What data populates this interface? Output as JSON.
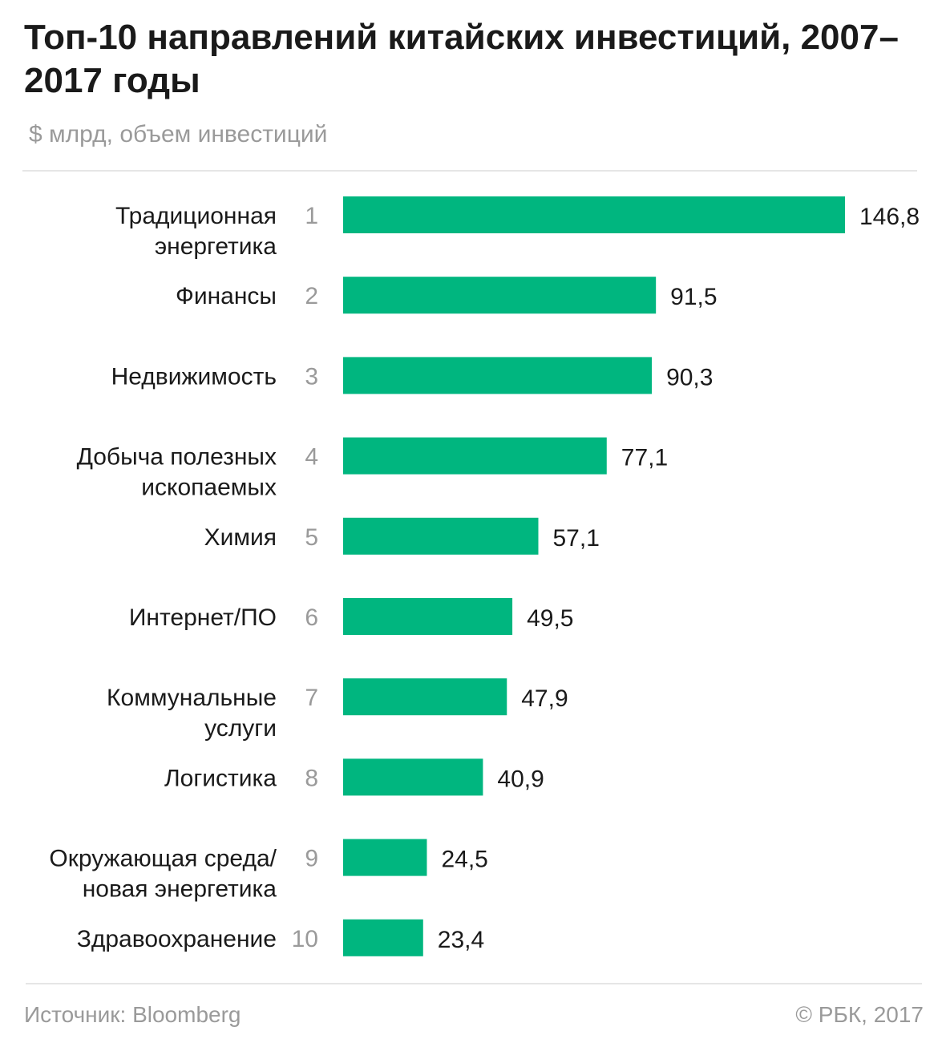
{
  "header": {
    "title": "Топ-10 направлений китайских инвестиций, 2007–2017 годы",
    "subtitle": "$ млрд, объем инвестиций"
  },
  "footer": {
    "source": "Источник: Bloomberg",
    "credit": "© РБК, 2017"
  },
  "colors": {
    "bar": "#00b67f",
    "text": "#1a1a1a",
    "muted": "#9a9a9a",
    "rule": "#e6e6e6"
  },
  "chart_data": {
    "type": "bar",
    "orientation": "horizontal",
    "title": "Топ-10 направлений китайских инвестиций, 2007–2017 годы",
    "subtitle": "$ млрд, объем инвестиций",
    "xlabel": "",
    "ylabel": "",
    "grid": false,
    "categories": [
      [
        "Традиционная",
        "энергетика"
      ],
      [
        "Финансы"
      ],
      [
        "Недвижимость"
      ],
      [
        "Добыча полезных",
        "ископаемых"
      ],
      [
        "Химия"
      ],
      [
        "Интернет/ПО"
      ],
      [
        "Коммунальные",
        "услуги"
      ],
      [
        "Логистика"
      ],
      [
        "Окружающая среда/",
        "новая энергетика"
      ],
      [
        "Здравоохранение"
      ]
    ],
    "ranks": [
      "1",
      "2",
      "3",
      "4",
      "5",
      "6",
      "7",
      "8",
      "9",
      "10"
    ],
    "values": [
      146.8,
      91.5,
      90.3,
      77.1,
      57.1,
      49.5,
      47.9,
      40.9,
      24.5,
      23.4
    ],
    "value_labels": [
      "146,8",
      "91,5",
      "90,3",
      "77,1",
      "57,1",
      "49,5",
      "47,9",
      "40,9",
      "24,5",
      "23,4"
    ],
    "xlim": [
      0,
      146.8
    ]
  }
}
